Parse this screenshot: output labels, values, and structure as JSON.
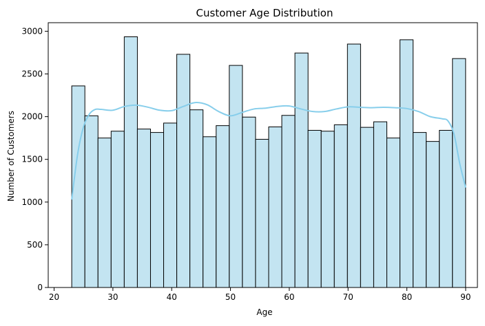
{
  "chart_data": {
    "type": "bar",
    "title": "Customer Age Distribution",
    "xlabel": "Age",
    "ylabel": "Number of Customers",
    "xlim": [
      19,
      92
    ],
    "ylim": [
      0,
      3100
    ],
    "xticks": [
      20,
      30,
      40,
      50,
      60,
      70,
      80,
      90
    ],
    "yticks": [
      0,
      500,
      1000,
      1500,
      2000,
      2500,
      3000
    ],
    "bin_start": 23,
    "bin_width": 2.233,
    "values": [
      2360,
      2010,
      1750,
      1830,
      2935,
      1855,
      1815,
      1925,
      2730,
      2080,
      1765,
      1895,
      2600,
      1995,
      1735,
      1880,
      2015,
      2745,
      1840,
      1830,
      1905,
      2850,
      1875,
      1940,
      1750,
      2900,
      1815,
      1710,
      1840,
      2680
    ],
    "kde": {
      "x": [
        23,
        24,
        25,
        26,
        27,
        28,
        30,
        32,
        34,
        36,
        38,
        40,
        42,
        44,
        46,
        48,
        50,
        52,
        54,
        56,
        58,
        60,
        62,
        64,
        66,
        68,
        70,
        72,
        74,
        76,
        78,
        80,
        82,
        84,
        86,
        87,
        88,
        89,
        90
      ],
      "y": [
        1030,
        1560,
        1880,
        2030,
        2085,
        2085,
        2075,
        2120,
        2135,
        2110,
        2075,
        2070,
        2120,
        2165,
        2140,
        2060,
        2010,
        2050,
        2090,
        2100,
        2120,
        2125,
        2090,
        2060,
        2060,
        2090,
        2115,
        2110,
        2105,
        2110,
        2105,
        2095,
        2060,
        2000,
        1975,
        1950,
        1800,
        1450,
        1170
      ]
    },
    "colors": {
      "bar_fill": "#c3e4f1",
      "bar_edge": "#000000",
      "kde_line": "#87ceeb"
    },
    "grid": false,
    "legend": false
  }
}
